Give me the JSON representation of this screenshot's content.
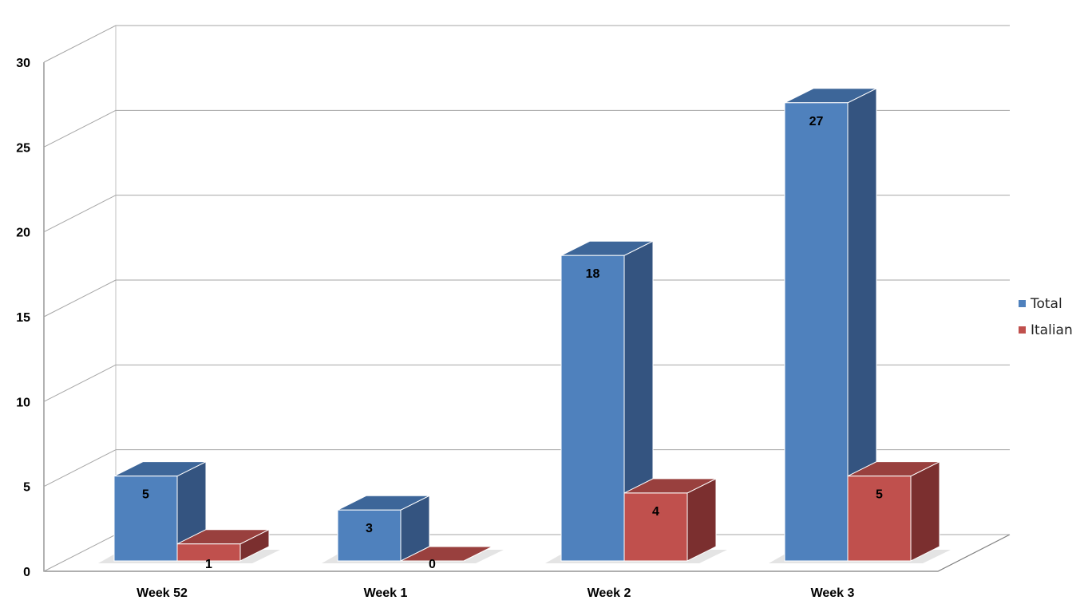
{
  "chart_data": {
    "type": "bar",
    "style": "3d-clustered-column",
    "categories": [
      "Week 52",
      "Week 1",
      "Week 2",
      "Week 3"
    ],
    "series": [
      {
        "name": "Total",
        "values": [
          5,
          3,
          18,
          27
        ],
        "color": "#4f81bd",
        "side_color": "#345480",
        "top_color": "#3d6699"
      },
      {
        "name": "Italian",
        "values": [
          1,
          0,
          4,
          5
        ],
        "color": "#c0504d",
        "side_color": "#7b2f2f",
        "top_color": "#99403e"
      }
    ],
    "ylim": [
      0,
      30
    ],
    "yticks": [
      0,
      5,
      10,
      15,
      20,
      25,
      30
    ],
    "grid": true,
    "legend_position": "right",
    "data_labels": true
  }
}
